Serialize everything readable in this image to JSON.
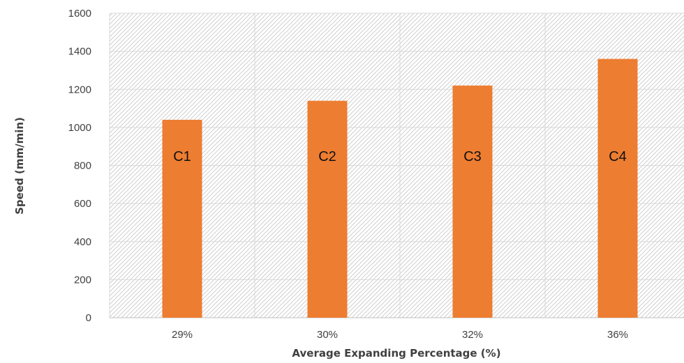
{
  "chart_data": {
    "type": "bar",
    "categories": [
      "29%",
      "30%",
      "32%",
      "36%"
    ],
    "values": [
      1040,
      1140,
      1220,
      1360
    ],
    "bar_labels": [
      "C1",
      "C2",
      "C3",
      "C4"
    ],
    "xlabel": "Average Expanding Percentage (%)",
    "ylabel": "Speed (mm/min)",
    "ylim": [
      0,
      1600
    ],
    "yticks": [
      "0",
      "200",
      "400",
      "600",
      "800",
      "1000",
      "1200",
      "1400",
      "1600"
    ],
    "grid": true,
    "colors": {
      "bar": "#ED7D31",
      "grid": "#D9D9D9",
      "hatch": "#CFCFCF"
    }
  }
}
